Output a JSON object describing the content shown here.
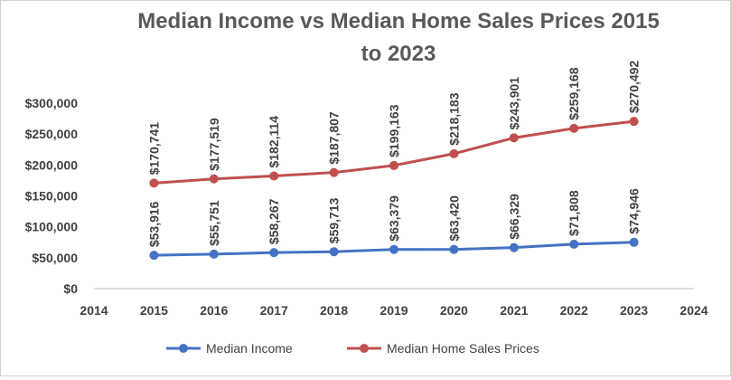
{
  "chart_data": {
    "type": "line",
    "title_line1": "Median Income vs Median Home Sales Prices 2015",
    "title_line2": "to 2023",
    "xlim": [
      2014,
      2024
    ],
    "ylim": [
      0,
      300000
    ],
    "x_ticks": [
      "2014",
      "2015",
      "2016",
      "2017",
      "2018",
      "2019",
      "2020",
      "2021",
      "2022",
      "2023",
      "2024"
    ],
    "y_ticks": [
      {
        "value": 0,
        "label": "$0"
      },
      {
        "value": 50000,
        "label": "$50,000"
      },
      {
        "value": 100000,
        "label": "$100,000"
      },
      {
        "value": 150000,
        "label": "$150,000"
      },
      {
        "value": 200000,
        "label": "$200,000"
      },
      {
        "value": 250000,
        "label": "$250,000"
      },
      {
        "value": 300000,
        "label": "$300,000"
      }
    ],
    "x": [
      2015,
      2016,
      2017,
      2018,
      2019,
      2020,
      2021,
      2022,
      2023
    ],
    "series": [
      {
        "name": "Median Income",
        "color": "#4472C4",
        "values": [
          53916,
          55751,
          58267,
          59713,
          63379,
          63420,
          66329,
          71808,
          74946
        ],
        "labels": [
          "$53,916",
          "$55,751",
          "$58,267",
          "$59,713",
          "$63,379",
          "$63,420",
          "$66,329",
          "$71,808",
          "$74,946"
        ]
      },
      {
        "name": "Median Home Sales Prices",
        "color": "#C0504D",
        "values": [
          170741,
          177519,
          182114,
          187807,
          199163,
          218183,
          243901,
          259168,
          270492
        ],
        "labels": [
          "$170,741",
          "$177,519",
          "$182,114",
          "$187,807",
          "$199,163",
          "$218,183",
          "$243,901",
          "$259,168",
          "$270,492"
        ]
      }
    ],
    "grid": false,
    "legend_position": "bottom"
  }
}
